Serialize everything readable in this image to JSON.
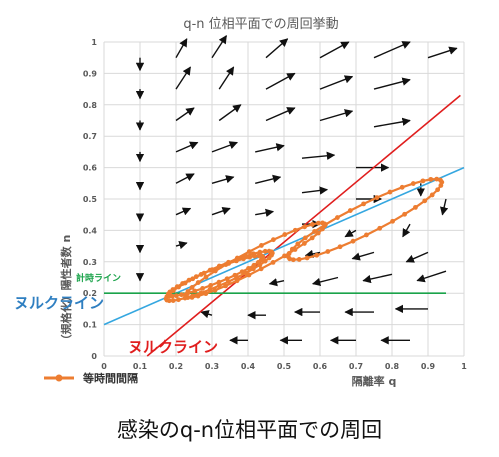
{
  "caption": "感染のq-n位相平面での周回",
  "colors": {
    "orbit": "#ed7d31",
    "diagonal_nullcline": "#e01e1e",
    "sloped_line": "#35a7e0",
    "timing_line": "#1aa34a",
    "arrows": "#111111",
    "grid": "#d9d9d9"
  },
  "annotations": {
    "nullcline_blue": "ヌルクライン",
    "nullcline_red": "ヌルクライン",
    "timing_line": "計時ライン"
  },
  "chart_data": {
    "type": "scatter",
    "title": "q-n 位相平面での周回挙動",
    "xlabel": "隔離率 q",
    "ylabel": "（規格化）陽性者数 n",
    "xlim": [
      0,
      1
    ],
    "ylim": [
      0,
      1
    ],
    "xticks": [
      "0",
      "0.1",
      "0.2",
      "0.3",
      "0.4",
      "0.5",
      "0.6",
      "0.7",
      "0.8",
      "0.9",
      "1"
    ],
    "yticks": [
      "0",
      "0.1",
      "0.2",
      "0.3",
      "0.4",
      "0.5",
      "0.6",
      "0.7",
      "0.8",
      "0.9",
      "1"
    ],
    "grid": true,
    "legend": {
      "position": "bottom-left",
      "entries": [
        {
          "name": "等時間間隔",
          "color": "#ed7d31"
        }
      ]
    },
    "reference_lines": [
      {
        "kind": "nullcline",
        "color": "#e01e1e",
        "points": [
          [
            0.12,
            0.0
          ],
          [
            0.99,
            0.83
          ]
        ]
      },
      {
        "kind": "nullcline",
        "color": "#35a7e0",
        "points": [
          [
            0.0,
            0.1
          ],
          [
            1.0,
            0.6
          ]
        ]
      },
      {
        "kind": "timing",
        "color": "#1aa34a",
        "points": [
          [
            0.0,
            0.2
          ],
          [
            0.95,
            0.2
          ]
        ]
      }
    ],
    "orbit_loops": [
      {
        "center": [
          0.725,
          0.435
        ],
        "rx": 0.245,
        "ry": 0.045,
        "angle_deg": 30,
        "start_deg": 195
      },
      {
        "center": [
          0.42,
          0.305
        ],
        "rx": 0.225,
        "ry": 0.032,
        "angle_deg": 31,
        "start_deg": 200
      },
      {
        "center": [
          0.32,
          0.255
        ],
        "rx": 0.165,
        "ry": 0.028,
        "angle_deg": 27,
        "start_deg": 205
      },
      {
        "center": [
          0.31,
          0.255
        ],
        "rx": 0.145,
        "ry": 0.022,
        "angle_deg": 25,
        "start_deg": 210
      }
    ],
    "vector_field": [
      {
        "x": 0.1,
        "y": 0.95,
        "dx": 0.0,
        "dy": -0.04
      },
      {
        "x": 0.2,
        "y": 0.95,
        "dx": 0.03,
        "dy": 0.06
      },
      {
        "x": 0.3,
        "y": 0.95,
        "dx": 0.04,
        "dy": 0.07
      },
      {
        "x": 0.45,
        "y": 0.95,
        "dx": 0.06,
        "dy": 0.06
      },
      {
        "x": 0.6,
        "y": 0.95,
        "dx": 0.08,
        "dy": 0.05
      },
      {
        "x": 0.75,
        "y": 0.95,
        "dx": 0.1,
        "dy": 0.05
      },
      {
        "x": 0.9,
        "y": 0.95,
        "dx": 0.08,
        "dy": 0.03
      },
      {
        "x": 0.1,
        "y": 0.85,
        "dx": 0.0,
        "dy": -0.03
      },
      {
        "x": 0.2,
        "y": 0.85,
        "dx": 0.04,
        "dy": 0.07
      },
      {
        "x": 0.32,
        "y": 0.85,
        "dx": 0.04,
        "dy": 0.07
      },
      {
        "x": 0.45,
        "y": 0.85,
        "dx": 0.08,
        "dy": 0.05
      },
      {
        "x": 0.6,
        "y": 0.85,
        "dx": 0.09,
        "dy": 0.04
      },
      {
        "x": 0.75,
        "y": 0.85,
        "dx": 0.1,
        "dy": 0.03
      },
      {
        "x": 0.1,
        "y": 0.75,
        "dx": 0.0,
        "dy": -0.03
      },
      {
        "x": 0.2,
        "y": 0.75,
        "dx": 0.05,
        "dy": 0.04
      },
      {
        "x": 0.32,
        "y": 0.75,
        "dx": 0.06,
        "dy": 0.05
      },
      {
        "x": 0.45,
        "y": 0.75,
        "dx": 0.08,
        "dy": 0.04
      },
      {
        "x": 0.6,
        "y": 0.75,
        "dx": 0.09,
        "dy": 0.03
      },
      {
        "x": 0.75,
        "y": 0.73,
        "dx": 0.1,
        "dy": 0.02
      },
      {
        "x": 0.1,
        "y": 0.65,
        "dx": 0.0,
        "dy": -0.03
      },
      {
        "x": 0.2,
        "y": 0.65,
        "dx": 0.06,
        "dy": 0.03
      },
      {
        "x": 0.3,
        "y": 0.65,
        "dx": 0.07,
        "dy": 0.03
      },
      {
        "x": 0.42,
        "y": 0.65,
        "dx": 0.08,
        "dy": 0.02
      },
      {
        "x": 0.55,
        "y": 0.63,
        "dx": 0.09,
        "dy": 0.01
      },
      {
        "x": 0.7,
        "y": 0.6,
        "dx": 0.09,
        "dy": 0.0
      },
      {
        "x": 0.1,
        "y": 0.55,
        "dx": 0.0,
        "dy": -0.02
      },
      {
        "x": 0.2,
        "y": 0.55,
        "dx": 0.05,
        "dy": 0.03
      },
      {
        "x": 0.3,
        "y": 0.55,
        "dx": 0.06,
        "dy": 0.02
      },
      {
        "x": 0.42,
        "y": 0.55,
        "dx": 0.07,
        "dy": 0.02
      },
      {
        "x": 0.55,
        "y": 0.52,
        "dx": 0.07,
        "dy": 0.01
      },
      {
        "x": 0.7,
        "y": 0.5,
        "dx": 0.07,
        "dy": 0.0
      },
      {
        "x": 0.88,
        "y": 0.55,
        "dx": 0.0,
        "dy": -0.04
      },
      {
        "x": 0.1,
        "y": 0.45,
        "dx": 0.0,
        "dy": -0.02
      },
      {
        "x": 0.2,
        "y": 0.45,
        "dx": 0.04,
        "dy": 0.02
      },
      {
        "x": 0.3,
        "y": 0.45,
        "dx": 0.05,
        "dy": 0.02
      },
      {
        "x": 0.42,
        "y": 0.45,
        "dx": 0.05,
        "dy": 0.01
      },
      {
        "x": 0.55,
        "y": 0.42,
        "dx": 0.05,
        "dy": 0.0
      },
      {
        "x": 0.7,
        "y": 0.4,
        "dx": -0.03,
        "dy": -0.02
      },
      {
        "x": 0.85,
        "y": 0.42,
        "dx": -0.02,
        "dy": -0.04
      },
      {
        "x": 0.95,
        "y": 0.5,
        "dx": -0.01,
        "dy": -0.05
      },
      {
        "x": 0.1,
        "y": 0.35,
        "dx": 0.0,
        "dy": -0.02
      },
      {
        "x": 0.2,
        "y": 0.35,
        "dx": 0.03,
        "dy": 0.01
      },
      {
        "x": 0.6,
        "y": 0.33,
        "dx": -0.04,
        "dy": -0.01
      },
      {
        "x": 0.75,
        "y": 0.33,
        "dx": -0.06,
        "dy": -0.02
      },
      {
        "x": 0.9,
        "y": 0.33,
        "dx": -0.06,
        "dy": -0.03
      },
      {
        "x": 0.1,
        "y": 0.25,
        "dx": 0.0,
        "dy": -0.01
      },
      {
        "x": 0.5,
        "y": 0.24,
        "dx": -0.04,
        "dy": -0.01
      },
      {
        "x": 0.65,
        "y": 0.25,
        "dx": -0.07,
        "dy": -0.02
      },
      {
        "x": 0.8,
        "y": 0.26,
        "dx": -0.08,
        "dy": -0.02
      },
      {
        "x": 0.95,
        "y": 0.27,
        "dx": -0.08,
        "dy": -0.03
      },
      {
        "x": 0.3,
        "y": 0.13,
        "dx": -0.03,
        "dy": 0.01
      },
      {
        "x": 0.45,
        "y": 0.13,
        "dx": -0.05,
        "dy": 0.0
      },
      {
        "x": 0.6,
        "y": 0.14,
        "dx": -0.07,
        "dy": 0.0
      },
      {
        "x": 0.75,
        "y": 0.14,
        "dx": -0.08,
        "dy": 0.0
      },
      {
        "x": 0.9,
        "y": 0.15,
        "dx": -0.09,
        "dy": 0.0
      },
      {
        "x": 0.4,
        "y": 0.05,
        "dx": -0.05,
        "dy": 0.0
      },
      {
        "x": 0.55,
        "y": 0.05,
        "dx": -0.06,
        "dy": 0.0
      },
      {
        "x": 0.7,
        "y": 0.05,
        "dx": -0.07,
        "dy": 0.0
      },
      {
        "x": 0.85,
        "y": 0.05,
        "dx": -0.08,
        "dy": 0.0
      }
    ]
  }
}
